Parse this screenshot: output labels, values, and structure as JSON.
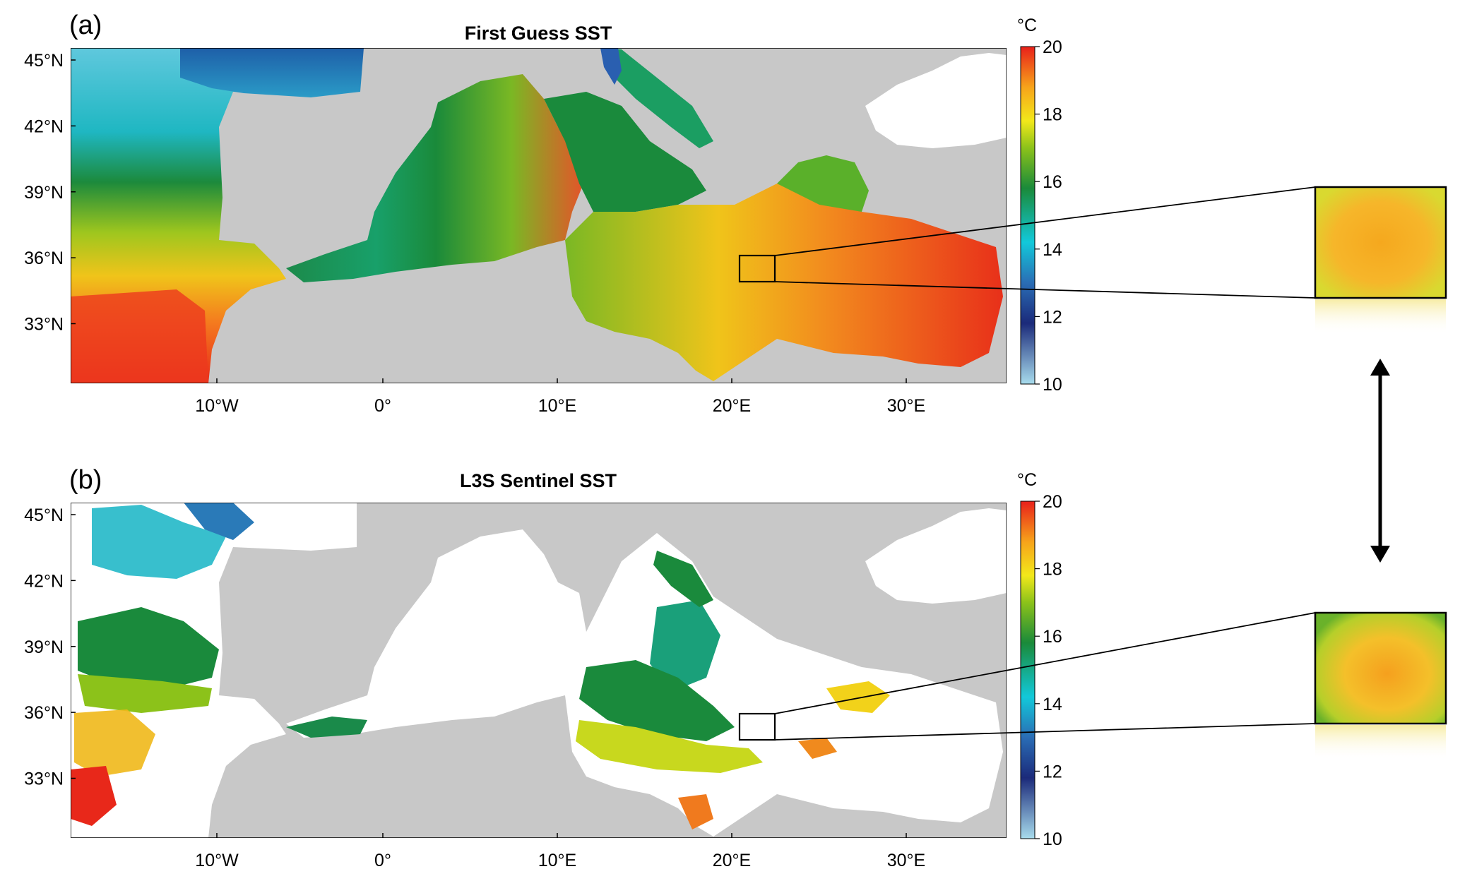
{
  "figure": {
    "panels": [
      {
        "id": "a",
        "letter": "(a)",
        "title": "First Guess SST",
        "coverage": "full"
      },
      {
        "id": "b",
        "letter": "(b)",
        "title": "L3S Sentinel SST",
        "coverage": "sparse"
      }
    ],
    "lat_ticks": [
      "45°N",
      "42°N",
      "39°N",
      "36°N",
      "33°N"
    ],
    "lon_ticks": [
      "10°W",
      "0°",
      "10°E",
      "20°E",
      "30°E"
    ],
    "colorbar": {
      "unit": "°C",
      "min": 10,
      "max": 20,
      "ticks": [
        "20",
        "18",
        "16",
        "14",
        "12",
        "10"
      ],
      "stops": [
        "#9fd3e6",
        "#1b2a7a",
        "#2a6db5",
        "#10c8d8",
        "#1a8a3a",
        "#8cc21a",
        "#f2e81a",
        "#f7a31a",
        "#e8281a"
      ]
    },
    "colors": {
      "land": "#c8c8c8",
      "missing": "#ffffff"
    }
  }
}
